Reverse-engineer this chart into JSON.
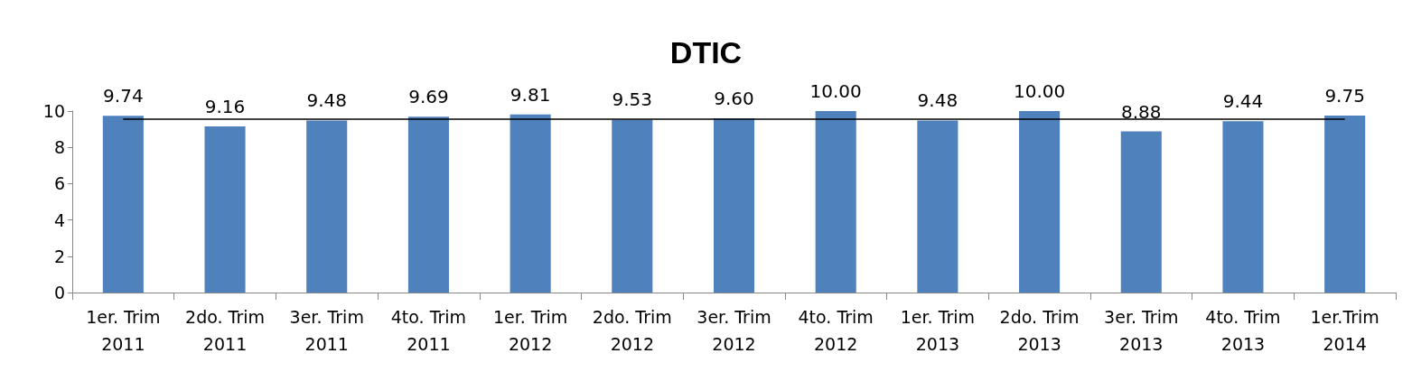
{
  "chart_data": {
    "type": "bar",
    "title": "DTIC",
    "categories": [
      "1er. Trim\n2011",
      "2do. Trim\n2011",
      "3er. Trim\n2011",
      "4to. Trim\n2011",
      "1er. Trim\n2012",
      "2do. Trim\n2012",
      "3er. Trim\n2012",
      "4to. Trim\n2012",
      "1er. Trim\n2013",
      "2do. Trim\n2013",
      "3er. Trim\n2013",
      "4to. Trim\n2013",
      "1er.Trim\n2014"
    ],
    "values": [
      9.74,
      9.16,
      9.48,
      9.69,
      9.81,
      9.53,
      9.6,
      10.0,
      9.48,
      10.0,
      8.88,
      9.44,
      9.75
    ],
    "value_labels": [
      "9.74",
      "9.16",
      "9.48",
      "9.69",
      "9.81",
      "9.53",
      "9.60",
      "10.00",
      "9.48",
      "10.00",
      "8.88",
      "9.44",
      "9.75"
    ],
    "color": "#4f81bd",
    "ylim": [
      0,
      10
    ],
    "yticks": [
      0,
      2,
      4,
      6,
      8,
      10
    ],
    "grid": false,
    "ref_lines": [
      {
        "axis": "y",
        "value": 9.58,
        "color": "#000000"
      }
    ]
  }
}
